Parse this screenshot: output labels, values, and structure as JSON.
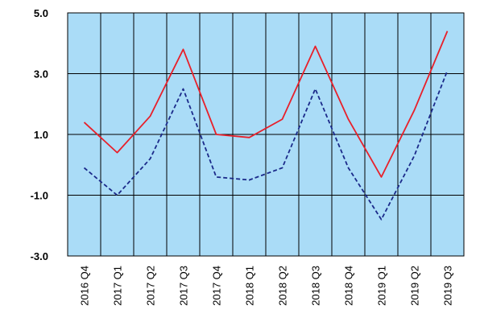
{
  "chart_data": {
    "type": "line",
    "title": "",
    "xlabel": "",
    "ylabel": "",
    "categories": [
      "2016 Q4",
      "2017 Q1",
      "2017 Q2",
      "2017 Q3",
      "2017 Q4",
      "2018 Q1",
      "2018 Q2",
      "2018 Q3",
      "2018 Q4",
      "2019 Q1",
      "2019 Q2",
      "2019 Q3"
    ],
    "ylim": [
      -3.0,
      5.0
    ],
    "yticks": [
      "5.0",
      "3.0",
      "1.0",
      "-1.0",
      "-3.0"
    ],
    "ytick_values": [
      5,
      3,
      1,
      -1,
      -3
    ],
    "grid": true,
    "background_color": "#aadcf7",
    "series": [
      {
        "style": "solid",
        "color": "#e8202a",
        "values": [
          1.4,
          0.4,
          1.6,
          3.8,
          1.0,
          0.9,
          1.5,
          3.9,
          1.5,
          -0.4,
          1.8,
          4.4
        ]
      },
      {
        "style": "dashed",
        "color": "#1b2a8a",
        "values": [
          -0.1,
          -1.0,
          0.2,
          2.5,
          -0.4,
          -0.5,
          -0.1,
          2.5,
          -0.1,
          -1.8,
          0.3,
          3.1
        ]
      }
    ]
  }
}
